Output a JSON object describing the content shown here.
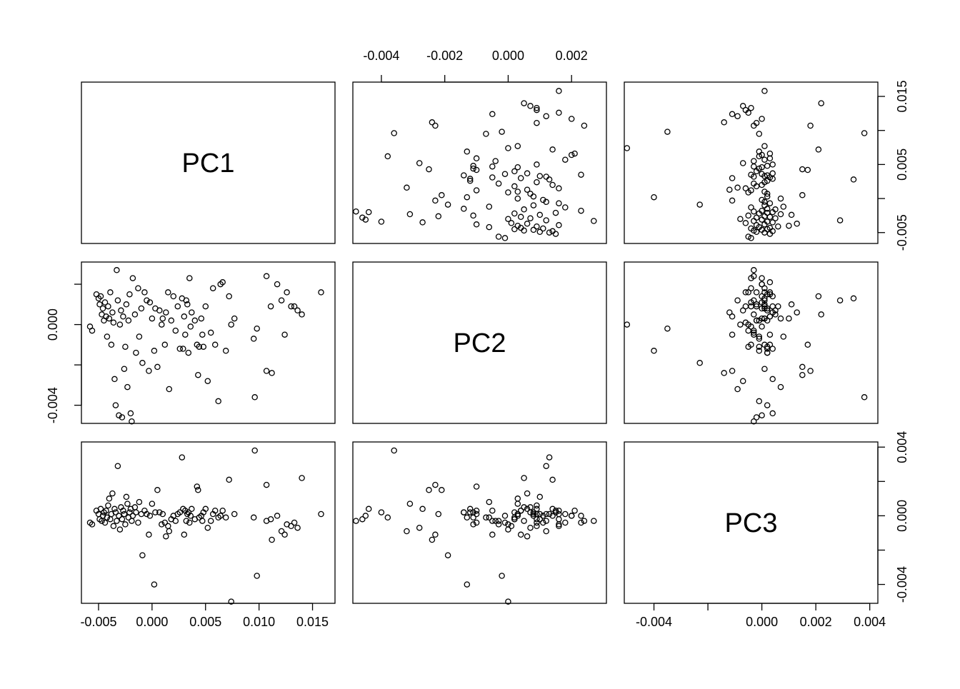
{
  "chart_data": {
    "type": "scatter",
    "layout": "pairs-matrix",
    "variables": [
      "PC1",
      "PC2",
      "PC3"
    ],
    "axes": {
      "PC1": {
        "range": [
          -0.0066,
          0.0171
        ],
        "ticks": [
          -0.005,
          0.0,
          0.005,
          0.01,
          0.015
        ],
        "tick_labels": [
          "-0.005",
          "0.000",
          "0.005",
          "0.010",
          "0.015"
        ]
      },
      "PC2": {
        "range": [
          -0.0049,
          0.0031
        ],
        "ticks": [
          -0.004,
          0.0
        ],
        "tick_labels": [
          "-0.004",
          "0.000"
        ]
      },
      "PC3": {
        "range": [
          -0.0051,
          0.0043
        ],
        "ticks": [
          -0.004,
          -0.002,
          0.0,
          0.002,
          0.004
        ],
        "tick_labels": [
          "-0.004",
          "",
          "0.000",
          "",
          "0.004"
        ]
      },
      "PC2_top": {
        "range": [
          -0.0049,
          0.0031
        ],
        "ticks": [
          -0.004,
          -0.002,
          0.0,
          0.002
        ],
        "tick_labels": [
          "-0.004",
          "-0.002",
          "0.000",
          "0.002"
        ]
      },
      "PC1_right": {
        "range": [
          -0.0066,
          0.0171
        ],
        "ticks": [
          -0.005,
          0.0,
          0.005,
          0.01,
          0.015
        ],
        "tick_labels": [
          "-0.005",
          "",
          "0.005",
          "",
          "0.015"
        ]
      },
      "PC3_bottom": {
        "range": [
          -0.0051,
          0.0043
        ],
        "ticks": [
          -0.004,
          -0.002,
          0.0,
          0.002,
          0.004
        ],
        "tick_labels": [
          "-0.004",
          "",
          "0.000",
          "0.002",
          "0.004"
        ]
      }
    },
    "points": [
      [
        -0.0058,
        -0.0001,
        -0.0004
      ],
      [
        -0.0056,
        -0.0003,
        -0.0005
      ],
      [
        -0.0052,
        0.0015,
        0.0003
      ],
      [
        -0.005,
        0.0013,
        0.0001
      ],
      [
        -0.0049,
        0.001,
        -0.0002
      ],
      [
        -0.0048,
        0.0014,
        0.0004
      ],
      [
        -0.0047,
        0.0005,
        -0.0003
      ],
      [
        -0.0046,
        0.0008,
        0.0
      ],
      [
        -0.0045,
        0.0002,
        0.0002
      ],
      [
        -0.0044,
        0.0011,
        -0.0004
      ],
      [
        -0.0043,
        0.0004,
        0.0003
      ],
      [
        -0.0042,
        -0.0006,
        -0.0001
      ],
      [
        -0.0041,
        0.0009,
        0.0006
      ],
      [
        -0.004,
        0.0003,
        0.001
      ],
      [
        -0.0039,
        0.0016,
        -0.0002
      ],
      [
        -0.0038,
        -0.001,
        0.0001
      ],
      [
        -0.0037,
        0.0006,
        0.0013
      ],
      [
        -0.0036,
        0.0001,
        -0.0006
      ],
      [
        -0.0035,
        -0.0027,
        0.0004
      ],
      [
        -0.0034,
        -0.004,
        0.0002
      ],
      [
        -0.0033,
        0.0027,
        -0.0003
      ],
      [
        -0.0032,
        0.0012,
        0.0029
      ],
      [
        -0.0031,
        -0.0045,
        0.0
      ],
      [
        -0.003,
        0.0,
        -0.0008
      ],
      [
        -0.0029,
        0.0007,
        0.0005
      ],
      [
        -0.0028,
        -0.0046,
        -0.0002
      ],
      [
        -0.0027,
        0.0004,
        0.0003
      ],
      [
        -0.0026,
        -0.0022,
        0.0001
      ],
      [
        -0.0025,
        -0.0011,
        -0.0005
      ],
      [
        -0.0024,
        0.001,
        0.0011
      ],
      [
        -0.0023,
        -0.0031,
        0.0007
      ],
      [
        -0.0022,
        0.0002,
        -0.0001
      ],
      [
        -0.0021,
        0.0015,
        0.0002
      ],
      [
        -0.002,
        -0.0044,
        0.0004
      ],
      [
        -0.0019,
        -0.0048,
        -0.0003
      ],
      [
        -0.0018,
        0.0023,
        0.0
      ],
      [
        -0.0016,
        0.0005,
        0.0005
      ],
      [
        -0.0015,
        -0.0014,
        0.0002
      ],
      [
        -0.0013,
        0.0018,
        -0.0004
      ],
      [
        -0.0012,
        -0.0006,
        0.0008
      ],
      [
        -0.001,
        0.0008,
        0.0001
      ],
      [
        -0.0009,
        -0.0019,
        -0.0023
      ],
      [
        -0.0007,
        0.0016,
        0.0003
      ],
      [
        -0.0005,
        0.0012,
        0.0001
      ],
      [
        -0.0003,
        -0.0023,
        -0.0011
      ],
      [
        -0.0002,
        0.0011,
        0.0
      ],
      [
        0.0,
        0.0003,
        0.0007
      ],
      [
        0.0002,
        -0.0013,
        -0.004
      ],
      [
        0.0003,
        0.0008,
        0.0002
      ],
      [
        0.0005,
        -0.0021,
        0.0015
      ],
      [
        0.0007,
        0.0007,
        0.0002
      ],
      [
        0.0009,
        0.0,
        -0.0005
      ],
      [
        0.001,
        0.0003,
        0.0001
      ],
      [
        0.0012,
        -0.001,
        -0.0004
      ],
      [
        0.0013,
        0.0006,
        -0.0012
      ],
      [
        0.0015,
        0.0016,
        -0.0006
      ],
      [
        0.0016,
        -0.0032,
        -0.0009
      ],
      [
        0.0018,
        0.0002,
        -0.0002
      ],
      [
        0.002,
        0.0014,
        0.0
      ],
      [
        0.0022,
        -0.0003,
        -0.0003
      ],
      [
        0.0024,
        0.0009,
        0.0001
      ],
      [
        0.0026,
        -0.0012,
        0.0002
      ],
      [
        0.0028,
        0.0013,
        0.0034
      ],
      [
        0.0029,
        -0.0012,
        0.0004
      ],
      [
        0.003,
        0.0004,
        -0.0011
      ],
      [
        0.0031,
        -0.0005,
        0.0003
      ],
      [
        0.0032,
        0.0012,
        -0.0003
      ],
      [
        0.0033,
        0.001,
        0.0001
      ],
      [
        0.0034,
        -0.0014,
        0.0002
      ],
      [
        0.0035,
        0.0023,
        -0.0004
      ],
      [
        0.0036,
        -0.0001,
        0.0
      ],
      [
        0.0037,
        0.0006,
        0.0004
      ],
      [
        0.004,
        0.0002,
        -0.0002
      ],
      [
        0.0042,
        -0.001,
        0.0017
      ],
      [
        0.0043,
        -0.0025,
        0.0015
      ],
      [
        0.0044,
        -0.0011,
        -0.0001
      ],
      [
        0.0046,
        0.0003,
        0.0
      ],
      [
        0.0047,
        -0.0005,
        -0.0003
      ],
      [
        0.0048,
        -0.0011,
        0.0002
      ],
      [
        0.005,
        0.0009,
        0.0004
      ],
      [
        0.0052,
        -0.0028,
        -0.0007
      ],
      [
        0.0055,
        -0.0004,
        -0.0003
      ],
      [
        0.0057,
        0.0018,
        0.0001
      ],
      [
        0.0059,
        -0.001,
        0.0003
      ],
      [
        0.0062,
        -0.0038,
        -0.0001
      ],
      [
        0.0064,
        0.002,
        0.0
      ],
      [
        0.0066,
        0.0021,
        0.0003
      ],
      [
        0.0069,
        -0.0013,
        -0.0001
      ],
      [
        0.0072,
        0.0014,
        0.0021
      ],
      [
        0.0074,
        0.0,
        -0.005
      ],
      [
        0.0077,
        0.0003,
        0.0001
      ],
      [
        0.0095,
        -0.0007,
        -0.0001
      ],
      [
        0.0096,
        -0.0036,
        0.0038
      ],
      [
        0.0098,
        -0.0002,
        -0.0035
      ],
      [
        0.0107,
        0.0024,
        -0.0003
      ],
      [
        0.0107,
        -0.0023,
        0.0018
      ],
      [
        0.0111,
        0.0009,
        -0.0002
      ],
      [
        0.0112,
        -0.0024,
        -0.0014
      ],
      [
        0.0117,
        0.002,
        0.0
      ],
      [
        0.0121,
        0.0012,
        -0.0009
      ],
      [
        0.0124,
        -0.0005,
        -0.0011
      ],
      [
        0.0126,
        0.0016,
        -0.0005
      ],
      [
        0.013,
        0.0009,
        -0.0006
      ],
      [
        0.0133,
        0.0009,
        -0.0004
      ],
      [
        0.0136,
        0.0007,
        -0.0007
      ],
      [
        0.014,
        0.0005,
        0.0022
      ],
      [
        0.0158,
        0.0016,
        0.0001
      ]
    ]
  }
}
